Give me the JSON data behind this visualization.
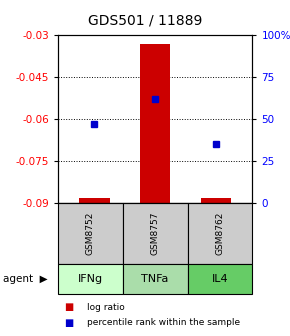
{
  "title": "GDS501 / 11889",
  "samples": [
    "GSM8752",
    "GSM8757",
    "GSM8762"
  ],
  "agents": [
    "IFNg",
    "TNFa",
    "IL4"
  ],
  "log_ratios": [
    -0.088,
    -0.033,
    -0.088
  ],
  "percentile_ranks": [
    47,
    62,
    35
  ],
  "ylim_left": [
    -0.09,
    -0.03
  ],
  "ylim_right": [
    0,
    100
  ],
  "yticks_left": [
    -0.09,
    -0.075,
    -0.06,
    -0.045,
    -0.03
  ],
  "yticks_right": [
    0,
    25,
    50,
    75,
    100
  ],
  "ytick_labels_right": [
    "0",
    "25",
    "50",
    "75",
    "100%"
  ],
  "bar_color": "#cc0000",
  "dot_color": "#0000cc",
  "agent_colors": [
    "#ccffcc",
    "#aaddaa",
    "#66cc66"
  ],
  "sample_box_color": "#cccccc",
  "legend_bar_label": "log ratio",
  "legend_dot_label": "percentile rank within the sample",
  "bar_width": 0.5
}
